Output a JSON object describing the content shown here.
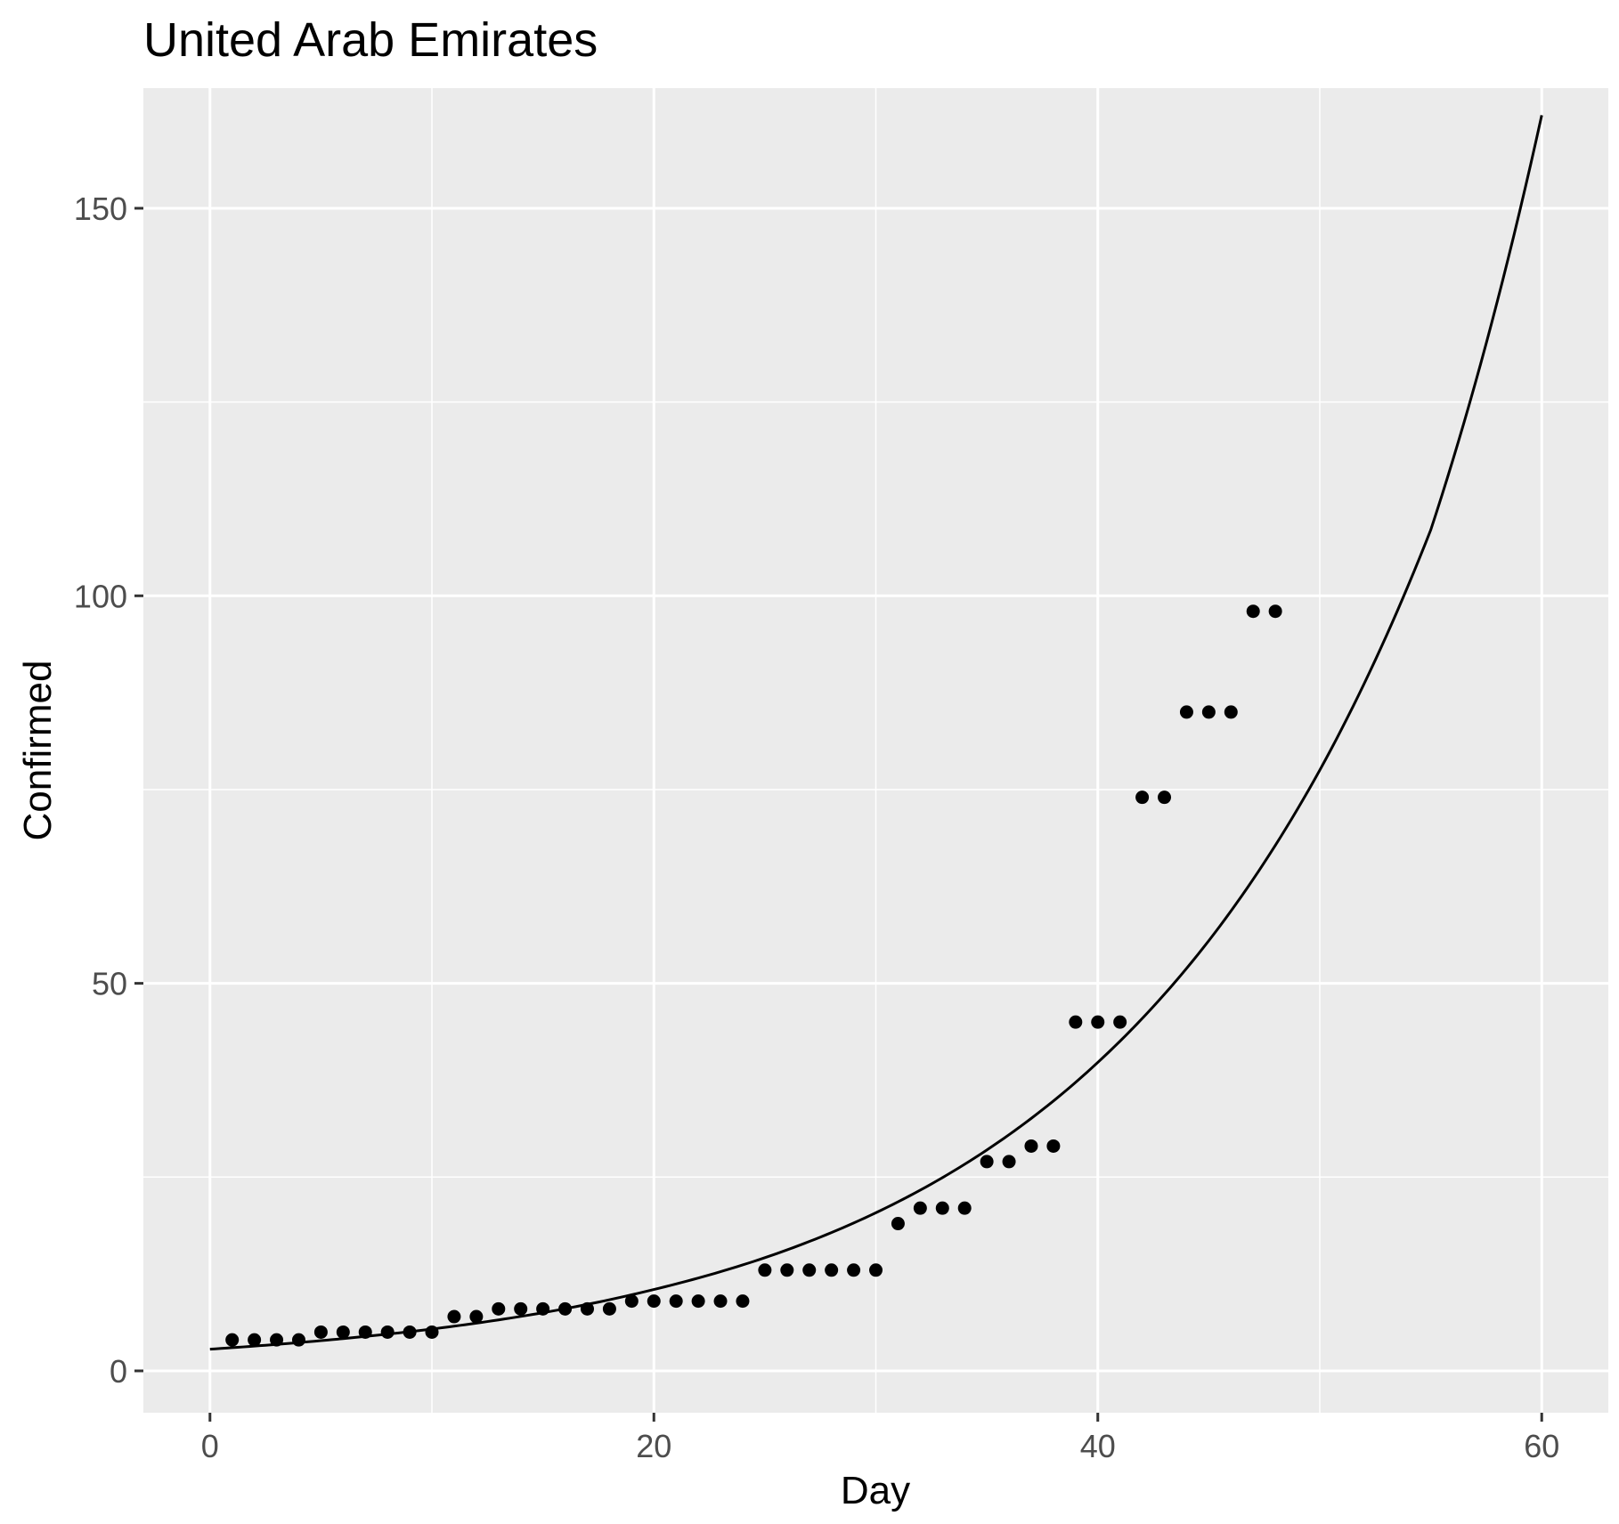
{
  "chart_data": {
    "type": "scatter",
    "title": "United Arab Emirates",
    "xlabel": "Day",
    "ylabel": "Confirmed",
    "xlim": [
      -3,
      63
    ],
    "ylim": [
      -5.4,
      165.5
    ],
    "x_ticks": [
      0,
      20,
      40,
      60
    ],
    "x_tick_labels": [
      "0",
      "20",
      "40",
      "60"
    ],
    "x_minor_ticks": [
      10,
      30,
      50
    ],
    "y_ticks": [
      0,
      50,
      100,
      150
    ],
    "y_tick_labels": [
      "0",
      "50",
      "100",
      "150"
    ],
    "y_minor_ticks": [
      25,
      75,
      125
    ],
    "grid": true,
    "legend": "none",
    "series": [
      {
        "type": "points",
        "x": [
          1,
          2,
          3,
          4,
          5,
          6,
          7,
          8,
          9,
          10,
          11,
          12,
          13,
          14,
          15,
          16,
          17,
          18,
          19,
          20,
          21,
          22,
          23,
          24,
          25,
          26,
          27,
          28,
          29,
          30,
          31,
          32,
          33,
          34,
          35,
          36,
          37,
          38,
          39,
          40,
          41,
          42,
          43,
          44,
          45,
          46,
          47,
          48
        ],
        "y": [
          4,
          4,
          4,
          4,
          5,
          5,
          5,
          5,
          5,
          5,
          7,
          7,
          8,
          8,
          8,
          8,
          8,
          8,
          9,
          9,
          9,
          9,
          9,
          9,
          13,
          13,
          13,
          13,
          13,
          13,
          19,
          21,
          21,
          21,
          27,
          27,
          29,
          29,
          45,
          45,
          45,
          74,
          74,
          85,
          85,
          85,
          98,
          98
        ]
      },
      {
        "type": "fit-line",
        "x": [
          0,
          5,
          10,
          15,
          20,
          25,
          30,
          35,
          40,
          45,
          50,
          55,
          60
        ],
        "y": [
          2.8,
          3.9,
          5.4,
          7.5,
          10.5,
          14.6,
          20.4,
          28.5,
          39.8,
          55.5,
          77.5,
          108.5,
          162.0
        ]
      }
    ]
  }
}
